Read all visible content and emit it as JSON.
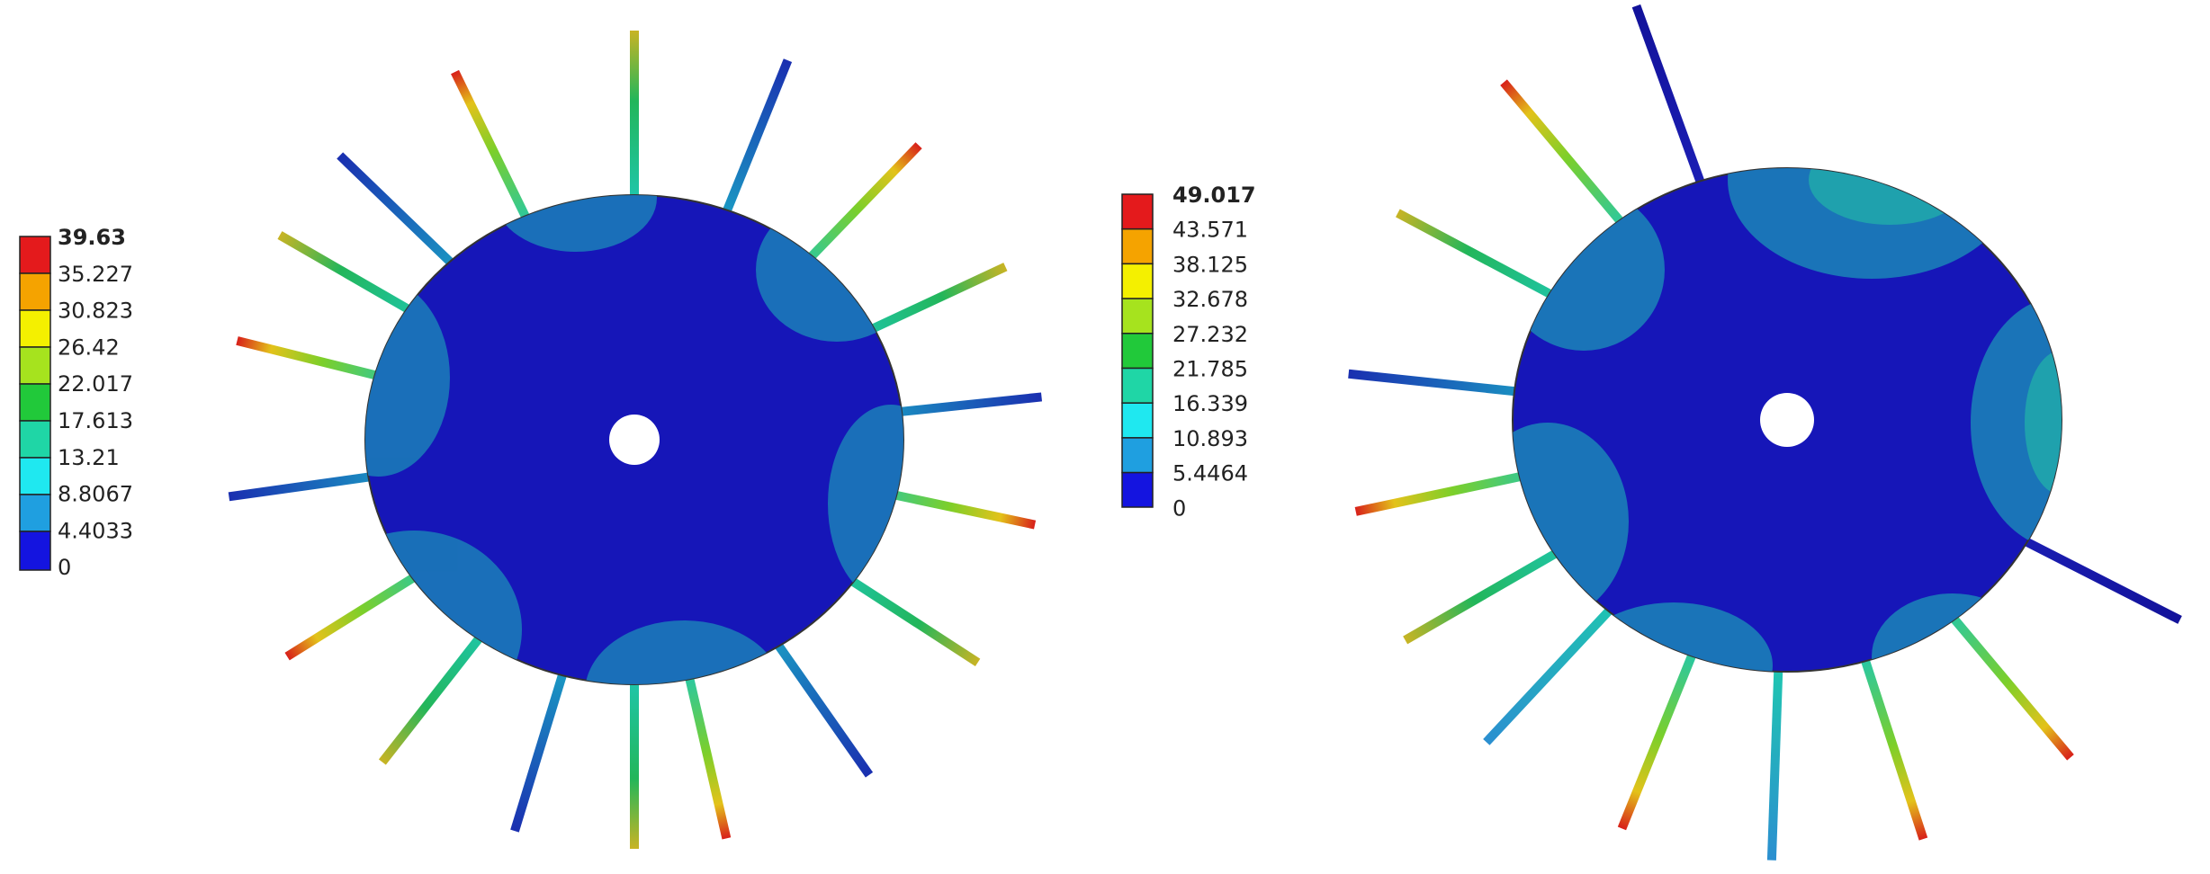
{
  "legend_left": {
    "labels": [
      39.63,
      35.227,
      30.823,
      26.42,
      22.017,
      17.613,
      13.21,
      8.8067,
      4.4033,
      0
    ]
  },
  "legend_right": {
    "labels": [
      49.017,
      43.571,
      38.125,
      32.678,
      27.232,
      21.785,
      16.339,
      10.893,
      5.4464,
      0
    ]
  }
}
